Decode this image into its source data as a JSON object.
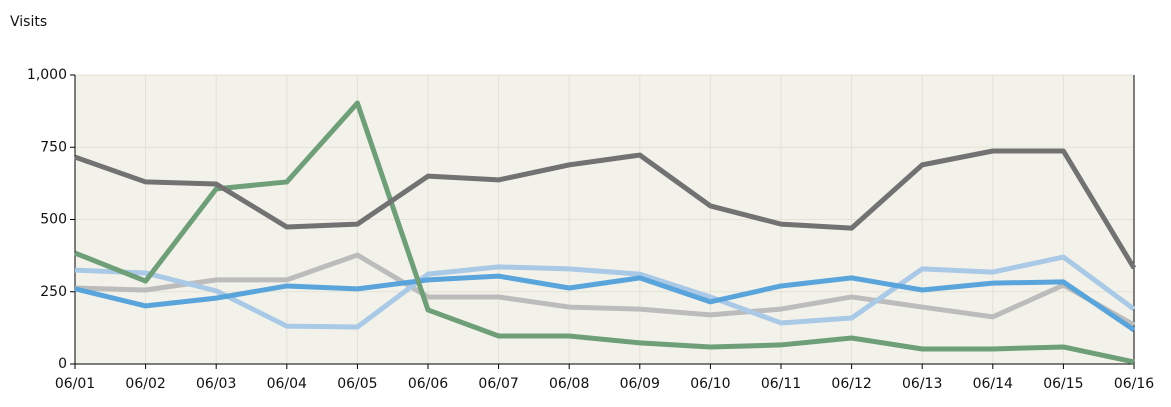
{
  "chart_data": {
    "type": "line",
    "y_label": "Visits",
    "categories": [
      "06/01",
      "06/02",
      "06/03",
      "06/04",
      "06/05",
      "06/06",
      "06/07",
      "06/08",
      "06/09",
      "06/10",
      "06/11",
      "06/12",
      "06/13",
      "06/14",
      "06/15",
      "06/16"
    ],
    "series": [
      {
        "color": "#bcbcbc",
        "values": [
          263,
          256,
          291,
          291,
          377,
          232,
          232,
          197,
          190,
          170,
          190,
          232,
          197,
          163,
          273,
          135
        ]
      },
      {
        "color": "#a9c9e6",
        "values": [
          325,
          315,
          253,
          131,
          128,
          311,
          336,
          329,
          311,
          232,
          142,
          159,
          329,
          318,
          370,
          190
        ]
      },
      {
        "color": "#5aa4dc",
        "values": [
          260,
          201,
          228,
          270,
          260,
          291,
          304,
          263,
          298,
          215,
          270,
          298,
          256,
          280,
          284,
          118
        ]
      },
      {
        "color": "#6e9f78",
        "values": [
          384,
          287,
          606,
          630,
          903,
          187,
          97,
          97,
          73,
          59,
          66,
          90,
          52,
          52,
          59,
          7
        ]
      },
      {
        "color": "#727272",
        "values": [
          716,
          630,
          623,
          474,
          484,
          650,
          637,
          689,
          723,
          547,
          484,
          470,
          689,
          737,
          737,
          332
        ]
      }
    ],
    "ylim": [
      0,
      1000
    ],
    "yticks": [
      0,
      250,
      500,
      {
        "value": 1000,
        "label": "1,000"
      },
      750
    ],
    "grid": true
  }
}
